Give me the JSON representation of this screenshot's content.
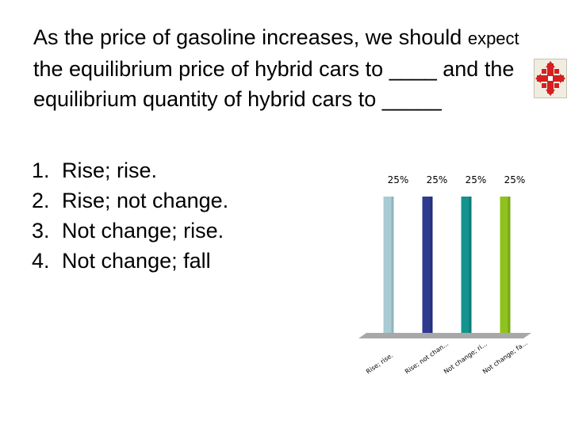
{
  "question": {
    "part1": "As the price of gasoline increases, we should",
    "emph": "expect",
    "part2": "the equilibrium price of hybrid cars to ____ and the equilibrium quantity of hybrid cars to _____"
  },
  "answers": [
    {
      "num": "1.",
      "text": "Rise; rise."
    },
    {
      "num": "2.",
      "text": "Rise; not change."
    },
    {
      "num": "3.",
      "text": "Not change; rise."
    },
    {
      "num": "4.",
      "text": "Not change; fall"
    }
  ],
  "icon": "response-grid-icon",
  "colors": {
    "bar1": "#a9cbd3",
    "bar2": "#2e3b8f",
    "bar3": "#14938f",
    "bar4": "#8fc21d",
    "floor": "#a8a8a8",
    "icon_red": "#d42020"
  },
  "chart_data": {
    "type": "bar",
    "categories": [
      "Rise; rise.",
      "Rise; not chan...",
      "Not change; ri...",
      "Not change; fa..."
    ],
    "values": [
      25,
      25,
      25,
      25
    ],
    "data_labels": [
      "25%",
      "25%",
      "25%",
      "25%"
    ],
    "ylim": [
      0,
      25
    ],
    "grid": false,
    "legend": "none"
  }
}
